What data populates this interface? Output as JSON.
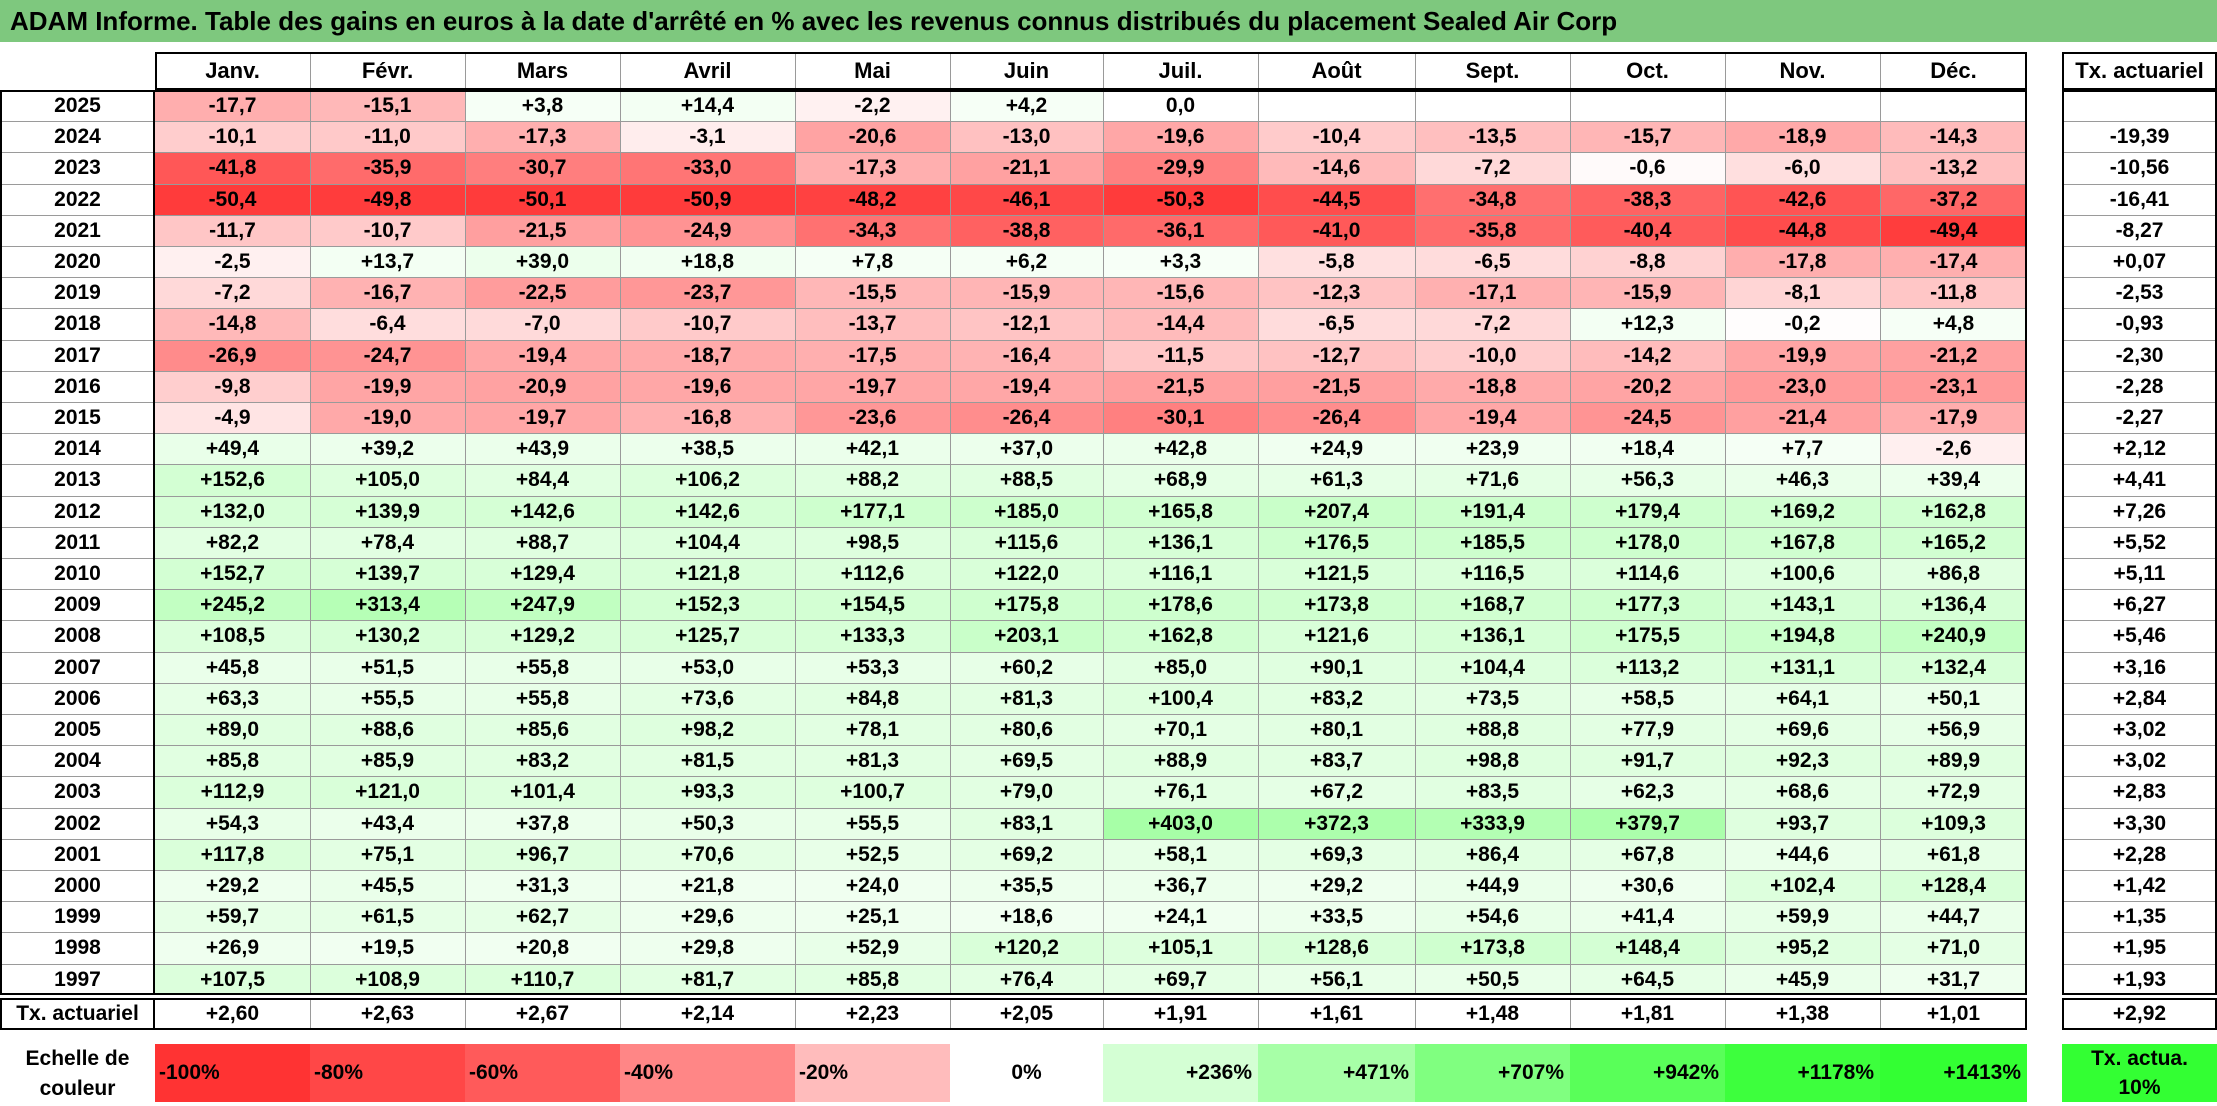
{
  "title": "ADAM Informe. Table des gains en euros à la date d'arrêté en % avec les revenus connus distribués du placement Sealed Air Corp",
  "months": [
    "Janv.",
    "Févr.",
    "Mars",
    "Avril",
    "Mai",
    "Juin",
    "Juil.",
    "Août",
    "Sept.",
    "Oct.",
    "Nov.",
    "Déc."
  ],
  "rate_header": "Tx. actuariel",
  "colors": {
    "title_bg": "#7ec87e",
    "neg_max": "#ff3333",
    "pos_max": "#33ff33",
    "neutral": "#ffffff",
    "border": "#000000"
  },
  "rows": [
    {
      "year": "2025",
      "values": [
        "-17,7",
        "-15,1",
        "+3,8",
        "+14,4",
        "-2,2",
        "+4,2",
        "0,0",
        "",
        "",
        "",
        "",
        ""
      ],
      "rate": ""
    },
    {
      "year": "2024",
      "values": [
        "-10,1",
        "-11,0",
        "-17,3",
        "-3,1",
        "-20,6",
        "-13,0",
        "-19,6",
        "-10,4",
        "-13,5",
        "-15,7",
        "-18,9",
        "-14,3"
      ],
      "rate": "-19,39"
    },
    {
      "year": "2023",
      "values": [
        "-41,8",
        "-35,9",
        "-30,7",
        "-33,0",
        "-17,3",
        "-21,1",
        "-29,9",
        "-14,6",
        "-7,2",
        "-0,6",
        "-6,0",
        "-13,2"
      ],
      "rate": "-10,56"
    },
    {
      "year": "2022",
      "values": [
        "-50,4",
        "-49,8",
        "-50,1",
        "-50,9",
        "-48,2",
        "-46,1",
        "-50,3",
        "-44,5",
        "-34,8",
        "-38,3",
        "-42,6",
        "-37,2"
      ],
      "rate": "-16,41"
    },
    {
      "year": "2021",
      "values": [
        "-11,7",
        "-10,7",
        "-21,5",
        "-24,9",
        "-34,3",
        "-38,8",
        "-36,1",
        "-41,0",
        "-35,8",
        "-40,4",
        "-44,8",
        "-49,4"
      ],
      "rate": "-8,27"
    },
    {
      "year": "2020",
      "values": [
        "-2,5",
        "+13,7",
        "+39,0",
        "+18,8",
        "+7,8",
        "+6,2",
        "+3,3",
        "-5,8",
        "-6,5",
        "-8,8",
        "-17,8",
        "-17,4"
      ],
      "rate": "+0,07"
    },
    {
      "year": "2019",
      "values": [
        "-7,2",
        "-16,7",
        "-22,5",
        "-23,7",
        "-15,5",
        "-15,9",
        "-15,6",
        "-12,3",
        "-17,1",
        "-15,9",
        "-8,1",
        "-11,8"
      ],
      "rate": "-2,53"
    },
    {
      "year": "2018",
      "values": [
        "-14,8",
        "-6,4",
        "-7,0",
        "-10,7",
        "-13,7",
        "-12,1",
        "-14,4",
        "-6,5",
        "-7,2",
        "+12,3",
        "-0,2",
        "+4,8"
      ],
      "rate": "-0,93"
    },
    {
      "year": "2017",
      "values": [
        "-26,9",
        "-24,7",
        "-19,4",
        "-18,7",
        "-17,5",
        "-16,4",
        "-11,5",
        "-12,7",
        "-10,0",
        "-14,2",
        "-19,9",
        "-21,2"
      ],
      "rate": "-2,30"
    },
    {
      "year": "2016",
      "values": [
        "-9,8",
        "-19,9",
        "-20,9",
        "-19,6",
        "-19,7",
        "-19,4",
        "-21,5",
        "-21,5",
        "-18,8",
        "-20,2",
        "-23,0",
        "-23,1"
      ],
      "rate": "-2,28"
    },
    {
      "year": "2015",
      "values": [
        "-4,9",
        "-19,0",
        "-19,7",
        "-16,8",
        "-23,6",
        "-26,4",
        "-30,1",
        "-26,4",
        "-19,4",
        "-24,5",
        "-21,4",
        "-17,9"
      ],
      "rate": "-2,27"
    },
    {
      "year": "2014",
      "values": [
        "+49,4",
        "+39,2",
        "+43,9",
        "+38,5",
        "+42,1",
        "+37,0",
        "+42,8",
        "+24,9",
        "+23,9",
        "+18,4",
        "+7,7",
        "-2,6"
      ],
      "rate": "+2,12"
    },
    {
      "year": "2013",
      "values": [
        "+152,6",
        "+105,0",
        "+84,4",
        "+106,2",
        "+88,2",
        "+88,5",
        "+68,9",
        "+61,3",
        "+71,6",
        "+56,3",
        "+46,3",
        "+39,4"
      ],
      "rate": "+4,41"
    },
    {
      "year": "2012",
      "values": [
        "+132,0",
        "+139,9",
        "+142,6",
        "+142,6",
        "+177,1",
        "+185,0",
        "+165,8",
        "+207,4",
        "+191,4",
        "+179,4",
        "+169,2",
        "+162,8"
      ],
      "rate": "+7,26"
    },
    {
      "year": "2011",
      "values": [
        "+82,2",
        "+78,4",
        "+88,7",
        "+104,4",
        "+98,5",
        "+115,6",
        "+136,1",
        "+176,5",
        "+185,5",
        "+178,0",
        "+167,8",
        "+165,2"
      ],
      "rate": "+5,52"
    },
    {
      "year": "2010",
      "values": [
        "+152,7",
        "+139,7",
        "+129,4",
        "+121,8",
        "+112,6",
        "+122,0",
        "+116,1",
        "+121,5",
        "+116,5",
        "+114,6",
        "+100,6",
        "+86,8"
      ],
      "rate": "+5,11"
    },
    {
      "year": "2009",
      "values": [
        "+245,2",
        "+313,4",
        "+247,9",
        "+152,3",
        "+154,5",
        "+175,8",
        "+178,6",
        "+173,8",
        "+168,7",
        "+177,3",
        "+143,1",
        "+136,4"
      ],
      "rate": "+6,27"
    },
    {
      "year": "2008",
      "values": [
        "+108,5",
        "+130,2",
        "+129,2",
        "+125,7",
        "+133,3",
        "+203,1",
        "+162,8",
        "+121,6",
        "+136,1",
        "+175,5",
        "+194,8",
        "+240,9"
      ],
      "rate": "+5,46"
    },
    {
      "year": "2007",
      "values": [
        "+45,8",
        "+51,5",
        "+55,8",
        "+53,0",
        "+53,3",
        "+60,2",
        "+85,0",
        "+90,1",
        "+104,4",
        "+113,2",
        "+131,1",
        "+132,4"
      ],
      "rate": "+3,16"
    },
    {
      "year": "2006",
      "values": [
        "+63,3",
        "+55,5",
        "+55,8",
        "+73,6",
        "+84,8",
        "+81,3",
        "+100,4",
        "+83,2",
        "+73,5",
        "+58,5",
        "+64,1",
        "+50,1"
      ],
      "rate": "+2,84"
    },
    {
      "year": "2005",
      "values": [
        "+89,0",
        "+88,6",
        "+85,6",
        "+98,2",
        "+78,1",
        "+80,6",
        "+70,1",
        "+80,1",
        "+88,8",
        "+77,9",
        "+69,6",
        "+56,9"
      ],
      "rate": "+3,02"
    },
    {
      "year": "2004",
      "values": [
        "+85,8",
        "+85,9",
        "+83,2",
        "+81,5",
        "+81,3",
        "+69,5",
        "+88,9",
        "+83,7",
        "+98,8",
        "+91,7",
        "+92,3",
        "+89,9"
      ],
      "rate": "+3,02"
    },
    {
      "year": "2003",
      "values": [
        "+112,9",
        "+121,0",
        "+101,4",
        "+93,3",
        "+100,7",
        "+79,0",
        "+76,1",
        "+67,2",
        "+83,5",
        "+62,3",
        "+68,6",
        "+72,9"
      ],
      "rate": "+2,83"
    },
    {
      "year": "2002",
      "values": [
        "+54,3",
        "+43,4",
        "+37,8",
        "+50,3",
        "+55,5",
        "+83,1",
        "+403,0",
        "+372,3",
        "+333,9",
        "+379,7",
        "+93,7",
        "+109,3"
      ],
      "rate": "+3,30"
    },
    {
      "year": "2001",
      "values": [
        "+117,8",
        "+75,1",
        "+96,7",
        "+70,6",
        "+52,5",
        "+69,2",
        "+58,1",
        "+69,3",
        "+86,4",
        "+67,8",
        "+44,6",
        "+61,8"
      ],
      "rate": "+2,28"
    },
    {
      "year": "2000",
      "values": [
        "+29,2",
        "+45,5",
        "+31,3",
        "+21,8",
        "+24,0",
        "+35,5",
        "+36,7",
        "+29,2",
        "+44,9",
        "+30,6",
        "+102,4",
        "+128,4"
      ],
      "rate": "+1,42"
    },
    {
      "year": "1999",
      "values": [
        "+59,7",
        "+61,5",
        "+62,7",
        "+29,6",
        "+25,1",
        "+18,6",
        "+24,1",
        "+33,5",
        "+54,6",
        "+41,4",
        "+59,9",
        "+44,7"
      ],
      "rate": "+1,35"
    },
    {
      "year": "1998",
      "values": [
        "+26,9",
        "+19,5",
        "+20,8",
        "+29,8",
        "+52,9",
        "+120,2",
        "+105,1",
        "+128,6",
        "+173,8",
        "+148,4",
        "+95,2",
        "+71,0"
      ],
      "rate": "+1,95"
    },
    {
      "year": "1997",
      "values": [
        "+107,5",
        "+108,9",
        "+110,7",
        "+81,7",
        "+85,8",
        "+76,4",
        "+69,7",
        "+56,1",
        "+50,5",
        "+64,5",
        "+45,9",
        "+31,7"
      ],
      "rate": "+1,93"
    }
  ],
  "summary": {
    "label": "Tx. actuariel",
    "values": [
      "+2,60",
      "+2,63",
      "+2,67",
      "+2,14",
      "+2,23",
      "+2,05",
      "+1,91",
      "+1,61",
      "+1,48",
      "+1,81",
      "+1,38",
      "+1,01"
    ],
    "rate": "+2,92"
  },
  "scale": {
    "label": "Echelle de couleur",
    "items": [
      {
        "label": "-100%",
        "color": "#ff3333"
      },
      {
        "label": "-80%",
        "color": "#ff4747"
      },
      {
        "label": "-60%",
        "color": "#ff5a5a"
      },
      {
        "label": "-40%",
        "color": "#ff8686"
      },
      {
        "label": "-20%",
        "color": "#ffbcbc"
      },
      {
        "label": "0%",
        "color": "#ffffff"
      },
      {
        "label": "+236%",
        "color": "#d4ffd4"
      },
      {
        "label": "+471%",
        "color": "#a7ffa7"
      },
      {
        "label": "+707%",
        "color": "#80ff80"
      },
      {
        "label": "+942%",
        "color": "#59ff59"
      },
      {
        "label": "+1178%",
        "color": "#3dff3d"
      },
      {
        "label": "+1413%",
        "color": "#33ff33"
      }
    ],
    "rate_label": "Tx. actua. 10%",
    "rate_color": "#33ff33"
  }
}
